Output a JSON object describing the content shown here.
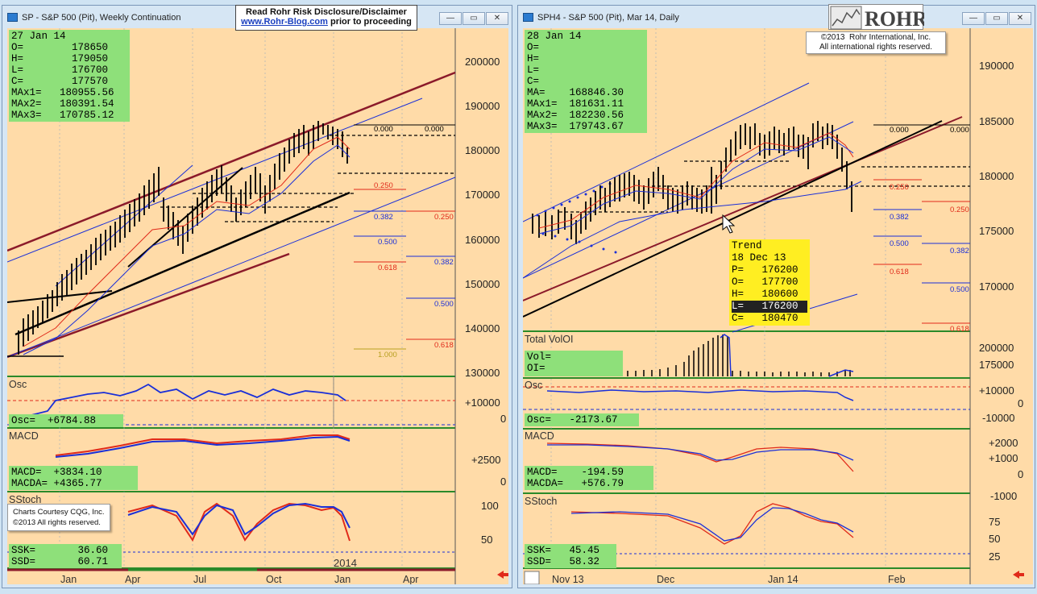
{
  "left_window": {
    "title": "SP - S&P 500 (Pit), Weekly Continuation",
    "info": "27 Jan 14\nO=        178650\nH=        179050\nL=        176700\nC=        177570\nMAx1=   180955.56\nMAx2=   180391.54\nMAx3=   170785.12",
    "price_ticks": [
      "200000",
      "190000",
      "180000",
      "170000",
      "160000",
      "150000",
      "140000",
      "130000"
    ],
    "fib_labels": [
      "0.000",
      "0.000",
      "0.250",
      "0.382",
      "0.250",
      "0.500",
      "0.382",
      "0.618",
      "0.500",
      "0.618",
      "1.000"
    ],
    "osc": {
      "title": "Osc",
      "value": "Osc=  +6784.88",
      "ticks": [
        "+10000",
        "0"
      ]
    },
    "macd": {
      "title": "MACD",
      "value": "MACD=  +3834.10\nMACDA= +4365.77",
      "ticks": [
        "+2500",
        "0"
      ]
    },
    "sstoch": {
      "title": "SStoch",
      "value": "SSK=       36.60\nSSD=       60.71",
      "ticks": [
        "100",
        "50"
      ]
    },
    "time_labels": [
      "Jan",
      "Apr",
      "Jul",
      "Oct",
      "Jan",
      "Apr"
    ],
    "year_label": "2014",
    "credit": "Charts Courtesy CQG, Inc.\n©2013 All rights reserved."
  },
  "right_window": {
    "title": "SPH4 - S&P 500 (Pit), Mar 14, Daily",
    "info": "28 Jan 14\nO=\nH=\nL=\nC=\nMA=    168846.30\nMAx1=  181631.11\nMAx2=  182230.56\nMAx3=  179743.67",
    "price_ticks": [
      "190000",
      "185000",
      "180000",
      "175000",
      "170000"
    ],
    "fib_labels": [
      "0.000",
      "0.000",
      "0.250",
      "0.250",
      "0.382",
      "0.500",
      "0.382",
      "0.618",
      "0.500",
      "0.618"
    ],
    "trend_box": {
      "title": "Trend",
      "date": "18 Dec 13",
      "p": "P=   176200",
      "o": "O=   177700",
      "h": "H=   180600",
      "l": "L=   176200",
      "c": "C=   180470"
    },
    "vol": {
      "title": "Total VolOI",
      "value": "Vol=\nOI=",
      "ticks": [
        "200000",
        "175000"
      ]
    },
    "osc": {
      "title": "Osc",
      "value": "Osc=   -2173.67",
      "ticks": [
        "+10000",
        "0",
        "-10000"
      ]
    },
    "macd": {
      "title": "MACD",
      "value": "MACD=    -194.59\nMACDA=   +576.79",
      "ticks": [
        "+2000",
        "+1000",
        "0",
        "-1000"
      ]
    },
    "sstoch": {
      "title": "SStoch",
      "value": "SSK=   45.45\nSSD=   58.32",
      "ticks": [
        "75",
        "50",
        "25"
      ]
    },
    "time_labels": [
      "Nov 13",
      "Dec",
      "Jan 14",
      "Feb"
    ]
  },
  "disclaimer": {
    "line1": "Read Rohr Risk Disclosure/Disclaimer",
    "link": "www.Rohr-Blog.com",
    "line2": " prior to proceeding"
  },
  "rohr_copyright": "©2013  Rohr International, Inc.\nAll international rights reserved.",
  "rohr_logo": "ROHR",
  "colors": {
    "chart_bg": "#ffdba8",
    "info_bg": "#8ee07a",
    "trend_bg": "#ffee22",
    "blue": "#1a2fd8",
    "red": "#e02a1a",
    "maroon": "#8b1a2a"
  }
}
